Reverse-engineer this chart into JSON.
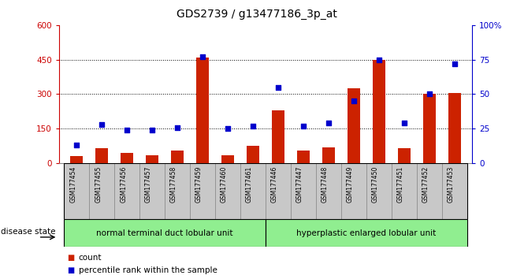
{
  "title": "GDS2739 / g13477186_3p_at",
  "samples": [
    "GSM177454",
    "GSM177455",
    "GSM177456",
    "GSM177457",
    "GSM177458",
    "GSM177459",
    "GSM177460",
    "GSM177461",
    "GSM177446",
    "GSM177447",
    "GSM177448",
    "GSM177449",
    "GSM177450",
    "GSM177451",
    "GSM177452",
    "GSM177453"
  ],
  "counts": [
    30,
    65,
    45,
    35,
    55,
    460,
    35,
    75,
    230,
    55,
    70,
    325,
    450,
    65,
    300,
    305
  ],
  "percentiles": [
    13,
    28,
    24,
    24,
    26,
    77,
    25,
    27,
    55,
    27,
    29,
    45,
    75,
    29,
    50,
    72
  ],
  "group1_label": "normal terminal duct lobular unit",
  "group1_count": 8,
  "group2_label": "hyperplastic enlarged lobular unit",
  "group2_count": 8,
  "disease_state_label": "disease state",
  "left_axis_color": "#cc0000",
  "right_axis_color": "#0000cc",
  "left_yticks": [
    0,
    150,
    300,
    450,
    600
  ],
  "right_yticks": [
    0,
    25,
    50,
    75,
    100
  ],
  "right_yticklabels": [
    "0",
    "25",
    "50",
    "75",
    "100%"
  ],
  "bar_color": "#cc2200",
  "dot_color": "#0000cc",
  "group_color": "#90ee90",
  "tick_box_color": "#c8c8c8",
  "background_color": "#ffffff"
}
